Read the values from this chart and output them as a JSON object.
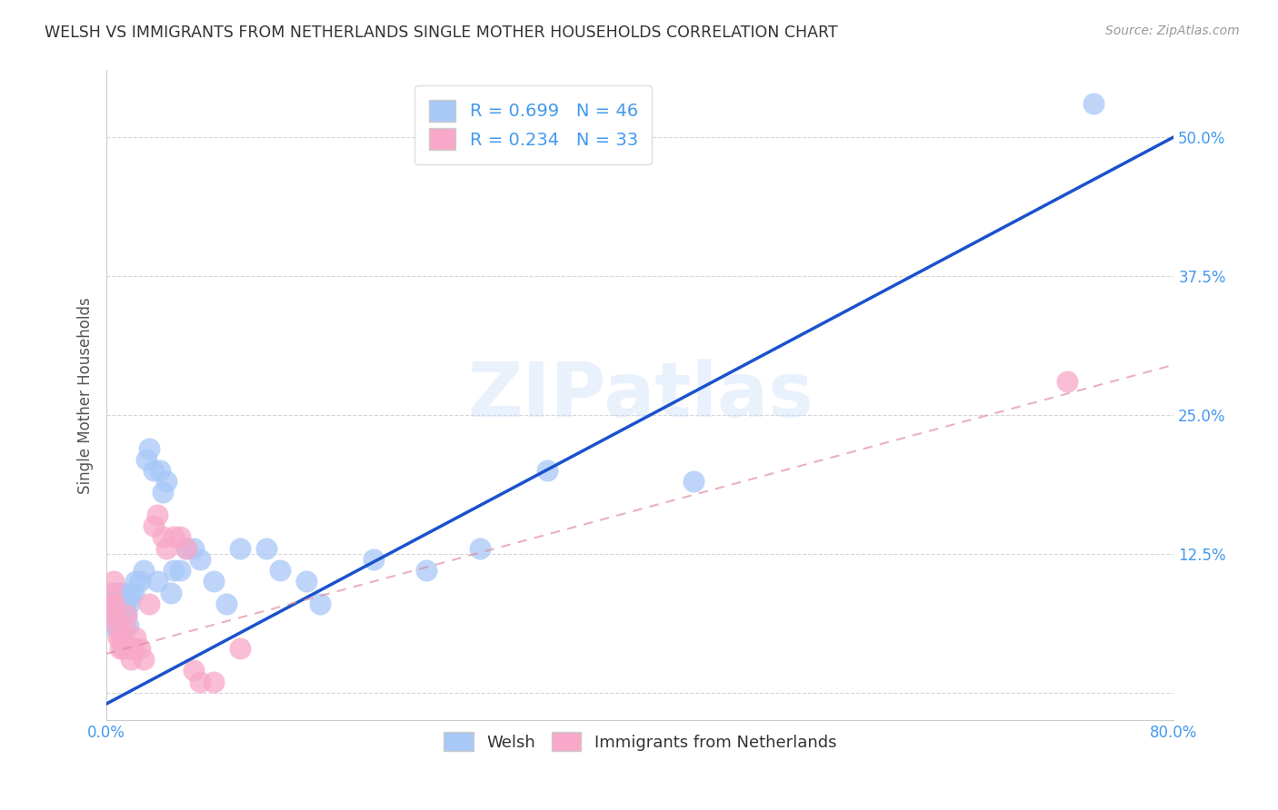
{
  "title": "WELSH VS IMMIGRANTS FROM NETHERLANDS SINGLE MOTHER HOUSEHOLDS CORRELATION CHART",
  "source": "Source: ZipAtlas.com",
  "ylabel": "Single Mother Households",
  "xlabel": "",
  "xlim": [
    0.0,
    0.8
  ],
  "ylim": [
    -0.025,
    0.56
  ],
  "yticks": [
    0.0,
    0.125,
    0.25,
    0.375,
    0.5
  ],
  "ytick_labels": [
    "",
    "12.5%",
    "25.0%",
    "37.5%",
    "50.0%"
  ],
  "xticks": [
    0.0,
    0.1,
    0.2,
    0.3,
    0.4,
    0.5,
    0.6,
    0.7,
    0.8
  ],
  "xtick_labels": [
    "0.0%",
    "",
    "",
    "",
    "",
    "",
    "",
    "",
    "80.0%"
  ],
  "welsh_R": 0.699,
  "welsh_N": 46,
  "netherlands_R": 0.234,
  "netherlands_N": 33,
  "welsh_color": "#a8c8f8",
  "netherlands_color": "#f8a8c8",
  "line_welsh_color": "#1a52cc",
  "line_netherlands_color": "#e08898",
  "watermark": "ZIPatlas",
  "welsh_line_x": [
    0.0,
    0.8
  ],
  "welsh_line_y": [
    -0.01,
    0.5
  ],
  "neth_line_x": [
    0.0,
    0.8
  ],
  "neth_line_y": [
    0.035,
    0.295
  ],
  "welsh_points_x": [
    0.003,
    0.004,
    0.005,
    0.006,
    0.007,
    0.008,
    0.009,
    0.01,
    0.011,
    0.012,
    0.013,
    0.014,
    0.015,
    0.016,
    0.017,
    0.018,
    0.02,
    0.022,
    0.025,
    0.028,
    0.03,
    0.032,
    0.035,
    0.038,
    0.04,
    0.042,
    0.045,
    0.048,
    0.05,
    0.055,
    0.06,
    0.065,
    0.07,
    0.08,
    0.09,
    0.1,
    0.12,
    0.13,
    0.15,
    0.16,
    0.2,
    0.24,
    0.28,
    0.33,
    0.44,
    0.74
  ],
  "welsh_points_y": [
    0.06,
    0.07,
    0.08,
    0.07,
    0.09,
    0.06,
    0.08,
    0.09,
    0.08,
    0.07,
    0.09,
    0.08,
    0.07,
    0.06,
    0.08,
    0.09,
    0.09,
    0.1,
    0.1,
    0.11,
    0.21,
    0.22,
    0.2,
    0.1,
    0.2,
    0.18,
    0.19,
    0.09,
    0.11,
    0.11,
    0.13,
    0.13,
    0.12,
    0.1,
    0.08,
    0.13,
    0.13,
    0.11,
    0.1,
    0.08,
    0.12,
    0.11,
    0.13,
    0.2,
    0.19,
    0.53
  ],
  "netherlands_points_x": [
    0.002,
    0.003,
    0.004,
    0.005,
    0.006,
    0.007,
    0.008,
    0.009,
    0.01,
    0.011,
    0.012,
    0.013,
    0.014,
    0.015,
    0.016,
    0.018,
    0.02,
    0.022,
    0.025,
    0.028,
    0.032,
    0.035,
    0.038,
    0.042,
    0.045,
    0.05,
    0.055,
    0.06,
    0.065,
    0.07,
    0.08,
    0.1,
    0.72
  ],
  "netherlands_points_y": [
    0.07,
    0.08,
    0.09,
    0.1,
    0.08,
    0.07,
    0.06,
    0.05,
    0.04,
    0.05,
    0.04,
    0.05,
    0.06,
    0.07,
    0.04,
    0.03,
    0.04,
    0.05,
    0.04,
    0.03,
    0.08,
    0.15,
    0.16,
    0.14,
    0.13,
    0.14,
    0.14,
    0.13,
    0.02,
    0.01,
    0.01,
    0.04,
    0.28
  ]
}
